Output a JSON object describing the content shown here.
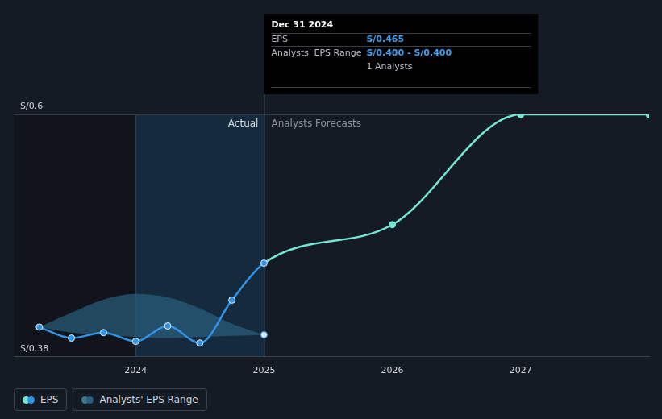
{
  "chart_data": {
    "type": "line",
    "y_prefix": "S/",
    "xlim": [
      2023.05,
      2028
    ],
    "xticks": [
      2024,
      2025,
      2026,
      2027
    ],
    "ylim": [
      0.38,
      0.6
    ],
    "yticks": [
      {
        "value": 0.38,
        "label": "S/0.38"
      },
      {
        "value": 0.6,
        "label": "S/0.6"
      }
    ],
    "grid": true,
    "highlight_x": [
      2024,
      2025
    ],
    "annotations": [
      {
        "text": "Actual",
        "x": 2025,
        "align": "right"
      },
      {
        "text": "Analysts Forecasts",
        "x": 2025,
        "align": "left"
      }
    ],
    "tooltip": {
      "title": "Dec 31 2024",
      "rows": [
        {
          "label": "EPS",
          "value": "S/0.465"
        },
        {
          "label": "Analysts' EPS Range",
          "value": "S/0.400 - S/0.400"
        },
        {
          "value": "1 Analysts"
        }
      ]
    },
    "series": [
      {
        "name": "EPS",
        "type": "line",
        "marker": "circle",
        "color": "#2e94e8",
        "forecast_color": "#72e8d4",
        "forecast_from": 2025,
        "x": [
          2023.25,
          2023.5,
          2023.75,
          2024,
          2024.25,
          2024.5,
          2024.75,
          2025,
          2026,
          2027,
          2028
        ],
        "values": [
          0.407,
          0.397,
          0.402,
          0.394,
          0.408,
          0.3925,
          0.4315,
          0.465,
          0.5,
          0.6,
          0.6
        ]
      },
      {
        "name": "Analysts' EPS Range",
        "type": "area",
        "color": "#2a5f80",
        "x": [
          2023.25,
          2023.5,
          2023.75,
          2024,
          2024.25,
          2024.5,
          2024.75,
          2025
        ],
        "low": [
          0.407,
          0.402,
          0.4,
          0.398,
          0.397,
          0.398,
          0.399,
          0.4
        ],
        "high": [
          0.407,
          0.42,
          0.432,
          0.437,
          0.434,
          0.424,
          0.41,
          0.4
        ]
      }
    ],
    "legend": "bottom-left"
  }
}
